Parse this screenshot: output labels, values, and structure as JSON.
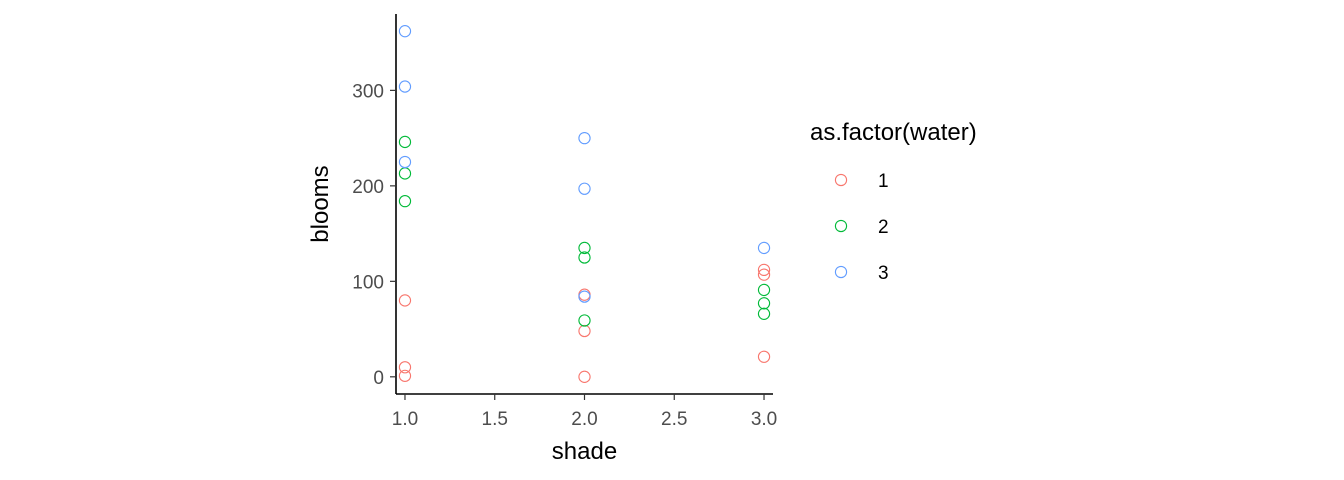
{
  "chart_data": {
    "type": "scatter",
    "xlabel": "shade",
    "ylabel": "blooms",
    "xlim": [
      0.95,
      3.05
    ],
    "ylim": [
      -18,
      380
    ],
    "xticks": [
      1.0,
      1.5,
      2.0,
      2.5,
      3.0
    ],
    "xtick_labels": [
      "1.0",
      "1.5",
      "2.0",
      "2.5",
      "3.0"
    ],
    "yticks": [
      0,
      100,
      200,
      300
    ],
    "ytick_labels": [
      "0",
      "100",
      "200",
      "300"
    ],
    "grid": false,
    "legend": {
      "title": "as.factor(water)",
      "placement": "right"
    },
    "series": [
      {
        "name": "1",
        "color": "#F8766D",
        "points": [
          {
            "x": 1,
            "y": 80
          },
          {
            "x": 1,
            "y": 10
          },
          {
            "x": 1,
            "y": 1
          },
          {
            "x": 2,
            "y": 86
          },
          {
            "x": 2,
            "y": 48
          },
          {
            "x": 2,
            "y": 0
          },
          {
            "x": 3,
            "y": 112
          },
          {
            "x": 3,
            "y": 107
          },
          {
            "x": 3,
            "y": 21
          }
        ]
      },
      {
        "name": "2",
        "color": "#00BA38",
        "points": [
          {
            "x": 1,
            "y": 246
          },
          {
            "x": 1,
            "y": 213
          },
          {
            "x": 1,
            "y": 184
          },
          {
            "x": 2,
            "y": 135
          },
          {
            "x": 2,
            "y": 125
          },
          {
            "x": 2,
            "y": 59
          },
          {
            "x": 3,
            "y": 91
          },
          {
            "x": 3,
            "y": 77
          },
          {
            "x": 3,
            "y": 66
          }
        ]
      },
      {
        "name": "3",
        "color": "#619CFF",
        "points": [
          {
            "x": 1,
            "y": 362
          },
          {
            "x": 1,
            "y": 304
          },
          {
            "x": 1,
            "y": 225
          },
          {
            "x": 2,
            "y": 250
          },
          {
            "x": 2,
            "y": 197
          },
          {
            "x": 2,
            "y": 84
          },
          {
            "x": 3,
            "y": 135
          }
        ]
      }
    ]
  }
}
